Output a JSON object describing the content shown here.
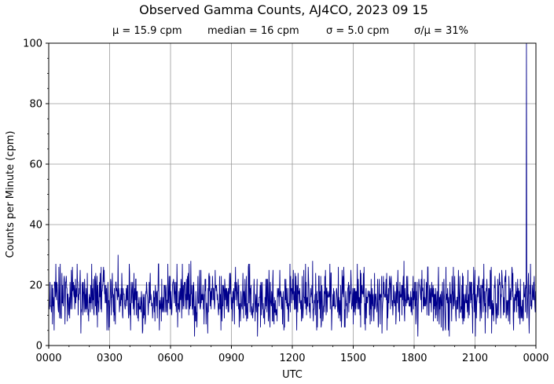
{
  "chart_data": {
    "type": "line",
    "title": "Observed Gamma Counts, AJ4CO, 2023 09 15",
    "stats": [
      "μ = 15.9 cpm",
      "median = 16 cpm",
      "σ = 5.0 cpm",
      "σ/μ = 31%"
    ],
    "xlabel": "UTC",
    "ylabel": "Counts per Minute (cpm)",
    "xlim": [
      0,
      1440
    ],
    "ylim": [
      0,
      100
    ],
    "x_ticks": [
      {
        "minute": 0,
        "label": "0000"
      },
      {
        "minute": 180,
        "label": "0300"
      },
      {
        "minute": 360,
        "label": "0600"
      },
      {
        "minute": 540,
        "label": "0900"
      },
      {
        "minute": 720,
        "label": "1200"
      },
      {
        "minute": 900,
        "label": "1500"
      },
      {
        "minute": 1080,
        "label": "1800"
      },
      {
        "minute": 1260,
        "label": "2100"
      },
      {
        "minute": 1440,
        "label": "0000"
      }
    ],
    "y_ticks": [
      0,
      20,
      40,
      60,
      80,
      100
    ],
    "grid": true,
    "line_color": "#00008b",
    "sample_interval_minutes": 1,
    "mean": 15.9,
    "sd": 5.0,
    "notable_points": [
      {
        "minute": 205,
        "value": 30
      },
      {
        "minute": 420,
        "value": 28
      },
      {
        "minute": 470,
        "value": 4
      },
      {
        "minute": 780,
        "value": 28
      },
      {
        "minute": 1050,
        "value": 28
      },
      {
        "minute": 1290,
        "value": 4
      },
      {
        "minute": 1412,
        "value": 100
      }
    ]
  }
}
